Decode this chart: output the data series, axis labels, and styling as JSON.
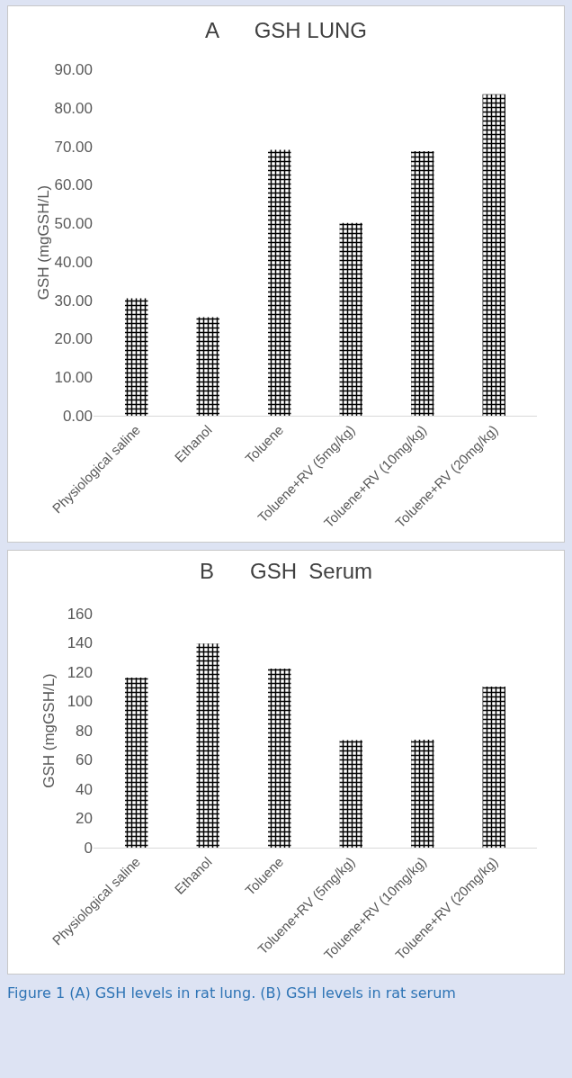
{
  "chart_data": [
    {
      "type": "bar",
      "title": "A      GSH LUNG",
      "ylabel": "GSH (mgGSH/L)",
      "categories": [
        "Physiological saline",
        "Ethanol",
        "Toluene",
        "Toluene+RV (5mg/kg)",
        "Toluene+RV (10mg/kg)",
        "Toluene+RV (20mg/kg)"
      ],
      "color": "#000000",
      "values": [
        30.5,
        25.6,
        69.1,
        50.1,
        68.7,
        83.5
      ],
      "ylim": [
        0,
        90
      ],
      "yticks": [
        {
          "value": 0,
          "label": "0.00"
        },
        {
          "value": 10,
          "label": "10.00"
        },
        {
          "value": 20,
          "label": "20.00"
        },
        {
          "value": 30,
          "label": "30.00"
        },
        {
          "value": 40,
          "label": "40.00"
        },
        {
          "value": 50,
          "label": "50.00"
        },
        {
          "value": 60,
          "label": "60.00"
        },
        {
          "value": 70,
          "label": "70.00"
        },
        {
          "value": 80,
          "label": "80.00"
        },
        {
          "value": 90,
          "label": "90.00"
        }
      ],
      "grid": false,
      "legend": false
    },
    {
      "type": "bar",
      "title": "B      GSH  Serum",
      "ylabel": "GSH (mgGSH/L)",
      "categories": [
        "Physiological saline",
        "Ethanol",
        "Toluene",
        "Toluene+RV (5mg/kg)",
        "Toluene+RV (10mg/kg)",
        "Toluene+RV (20mg/kg)"
      ],
      "color": "#000000",
      "values": [
        116.3,
        139.5,
        122.4,
        73.6,
        73.9,
        110.2
      ],
      "ylim": [
        0,
        160
      ],
      "yticks": [
        0,
        20,
        40,
        60,
        80,
        100,
        120,
        140,
        160
      ],
      "grid": false,
      "legend": false,
      "annotations": [
        "Figure 1 (A) GSH levels in rat lung. (B) GSH levels in rat serum"
      ]
    }
  ]
}
